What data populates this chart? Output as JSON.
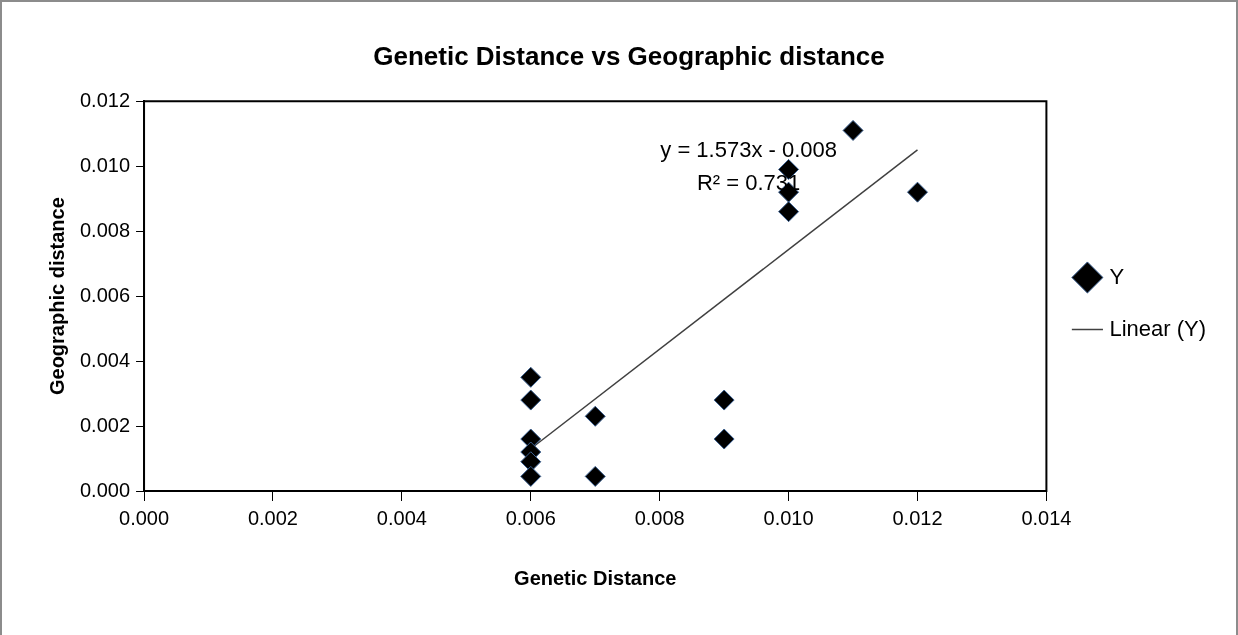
{
  "chart_data": {
    "type": "scatter",
    "title": "Genetic Distance vs Geographic distance",
    "xlabel": "Genetic Distance",
    "ylabel": "Geographic distance",
    "series": [
      {
        "name": "Y",
        "marker": "diamond",
        "color": "#000000",
        "x": [
          0.006,
          0.006,
          0.006,
          0.006,
          0.006,
          0.006,
          0.007,
          0.007,
          0.009,
          0.009,
          0.01,
          0.01,
          0.01,
          0.011,
          0.012
        ],
        "values": [
          0.0035,
          0.0028,
          0.0016,
          0.0012,
          0.0009,
          0.00045,
          0.0023,
          0.00045,
          0.0028,
          0.0016,
          0.0099,
          0.0092,
          0.0086,
          0.0111,
          0.0092
        ]
      },
      {
        "name": "Linear (Y)",
        "type": "line",
        "color": "#404040",
        "x": [
          0.006,
          0.012
        ],
        "values": [
          0.0013,
          0.0105
        ]
      }
    ],
    "xlim": [
      0,
      0.014
    ],
    "xticks": [
      {
        "value": 0,
        "label": "0.000"
      },
      {
        "value": 0.002,
        "label": "0.002"
      },
      {
        "value": 0.004,
        "label": "0.004"
      },
      {
        "value": 0.006,
        "label": "0.006"
      },
      {
        "value": 0.008,
        "label": "0.008"
      },
      {
        "value": 0.01,
        "label": "0.010"
      },
      {
        "value": 0.012,
        "label": "0.012"
      },
      {
        "value": 0.014,
        "label": "0.014"
      }
    ],
    "ylim": [
      0,
      0.012
    ],
    "yticks": [
      {
        "value": 0,
        "label": "0.000"
      },
      {
        "value": 0.002,
        "label": "0.002"
      },
      {
        "value": 0.004,
        "label": "0.004"
      },
      {
        "value": 0.006,
        "label": "0.006"
      },
      {
        "value": 0.008,
        "label": "0.008"
      },
      {
        "value": 0.01,
        "label": "0.010"
      },
      {
        "value": 0.012,
        "label": "0.012"
      }
    ],
    "annotations": [
      "y = 1.573x - 0.008",
      "R² = 0.731"
    ],
    "grid": false,
    "legend": "right"
  }
}
